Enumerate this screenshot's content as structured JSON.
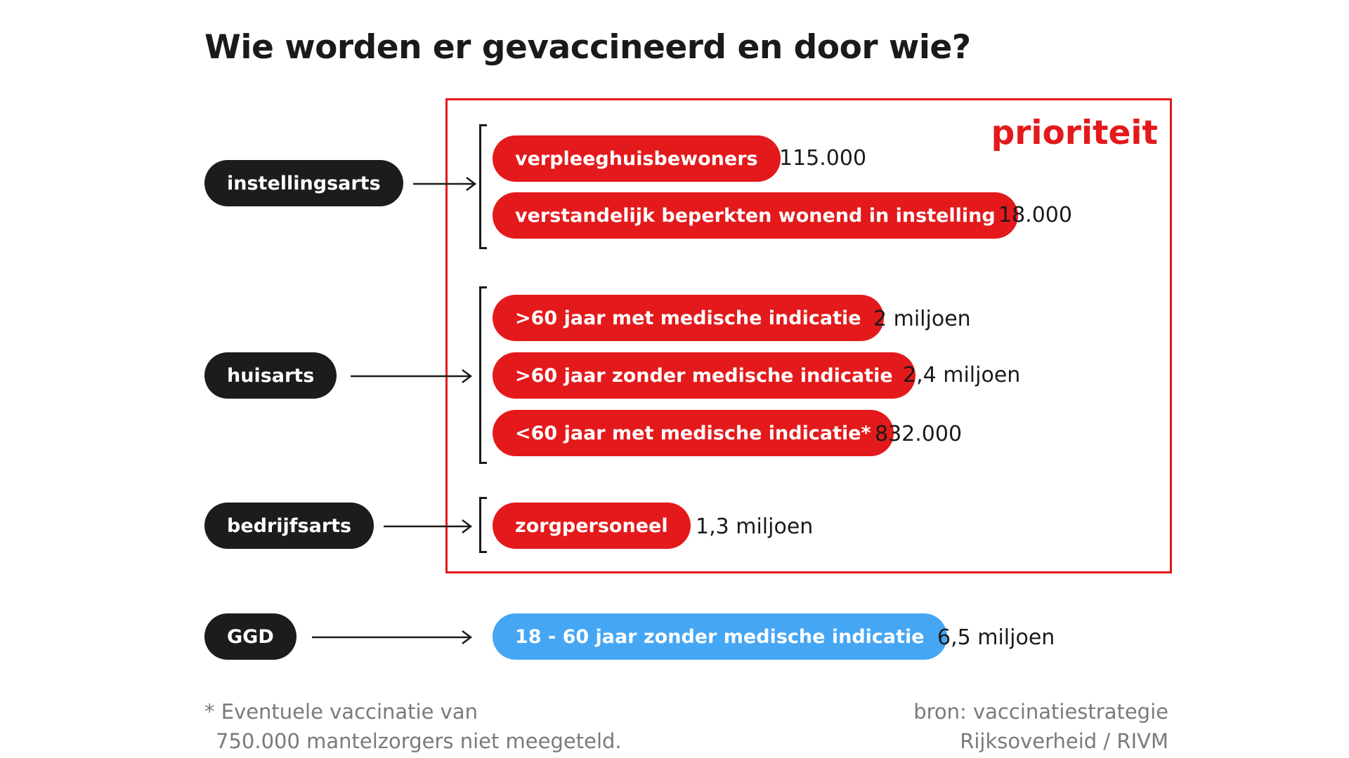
{
  "title": "Wie worden er gevaccineerd en door wie?",
  "priority_label": "prioriteit",
  "colors": {
    "priority_red": "#e4191b",
    "doctor_black": "#1c1c1c",
    "ggd_blue": "#45a6f4"
  },
  "doctors": {
    "instellingsarts": "instellingsarts",
    "huisarts": "huisarts",
    "bedrijfsarts": "bedrijfsarts",
    "ggd": "GGD"
  },
  "groups": [
    {
      "label": "verpleeghuisbewoners",
      "count": "115.000"
    },
    {
      "label": "verstandelijk beperkten wonend in instelling",
      "count": "18.000"
    },
    {
      "label": ">60 jaar met medische indicatie",
      "count": "2 miljoen"
    },
    {
      "label": ">60 jaar zonder medische indicatie",
      "count": "2,4 miljoen"
    },
    {
      "label": "<60 jaar met medische indicatie*",
      "count": "832.000"
    },
    {
      "label": "zorgpersoneel",
      "count": "1,3 miljoen"
    },
    {
      "label": "18 - 60 jaar zonder medische indicatie",
      "count": "6,5 miljoen"
    }
  ],
  "footnote": {
    "line1": "* Eventuele vaccinatie van",
    "line2": "750.000 mantelzorgers niet meegeteld."
  },
  "source": {
    "line1": "bron: vaccinatiestrategie",
    "line2": "Rijksoverheid / RIVM"
  }
}
